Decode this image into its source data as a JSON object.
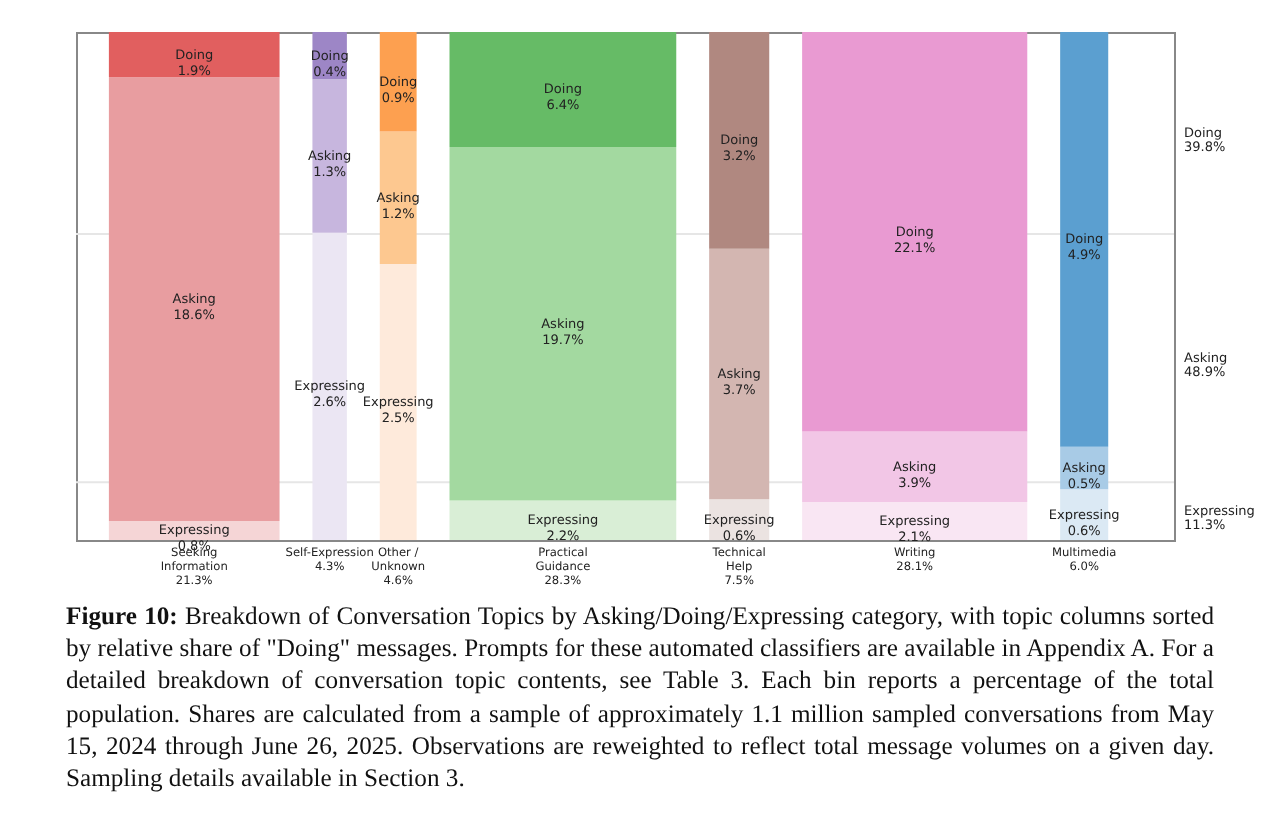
{
  "chart_data": {
    "type": "other",
    "data_labels": true,
    "categories": [
      "Seeking\nInformation",
      "Self-Expression",
      "Other /\nUnknown",
      "Practical\nGuidance",
      "Technical\nHelp",
      "Writing",
      "Multimedia"
    ],
    "totals": [
      "21.3%",
      "4.3%",
      "4.6%",
      "28.3%",
      "7.5%",
      "28.1%",
      "6.0%"
    ],
    "series": [
      {
        "name": "Expressing",
        "values": [
          0.8,
          2.6,
          2.5,
          2.2,
          0.6,
          2.1,
          0.6
        ],
        "value_labels": [
          "0.8%",
          "2.6%",
          "2.5%",
          "2.2%",
          "0.6%",
          "2.1%",
          "0.6%"
        ],
        "colors": [
          "#f5d5d6",
          "#ebe6f3",
          "#feeadb",
          "#d9eed6",
          "#ebe3e1",
          "#f9e6f3",
          "#dbe9f4"
        ]
      },
      {
        "name": "Asking",
        "values": [
          18.6,
          1.3,
          1.2,
          19.7,
          3.7,
          3.9,
          0.5
        ],
        "value_labels": [
          "18.6%",
          "1.3%",
          "1.2%",
          "19.7%",
          "3.7%",
          "3.9%",
          "0.5%"
        ],
        "colors": [
          "#e89da0",
          "#c7b6de",
          "#fdc890",
          "#a3d9a0",
          "#d3b6b1",
          "#f2c6e6",
          "#a8cbe6"
        ]
      },
      {
        "name": "Doing",
        "values": [
          1.9,
          0.4,
          0.9,
          6.4,
          3.2,
          22.1,
          4.9
        ],
        "value_labels": [
          "1.9%",
          "0.4%",
          "0.9%",
          "6.4%",
          "3.2%",
          "22.1%",
          "4.9%"
        ],
        "colors": [
          "#e15f5f",
          "#9d86c6",
          "#fda050",
          "#66bb66",
          "#b08880",
          "#e99ad2",
          "#5b9fd0"
        ]
      }
    ],
    "annotations": [
      "Expressing\n11.3%",
      "Asking\n48.9%",
      "Doing\n39.8%",
      "Figure 10: Breakdown of Conversation Topics by Asking/Doing/Expressing category, with topic columns sorted by relative share of \"Doing\" messages. Prompts for these automated classifiers are available in Appendix A. For a detailed breakdown of conversation topic contents, see Table 3. Each bin reports a percentage of the total population. Shares are calculated from a sample of approximately 1.1 million sampled conversations from May 15, 2024 through June 26, 2025. Observations are reweighted to reflect total message volumes on a given day. Sampling details available in Section 3."
    ]
  }
}
